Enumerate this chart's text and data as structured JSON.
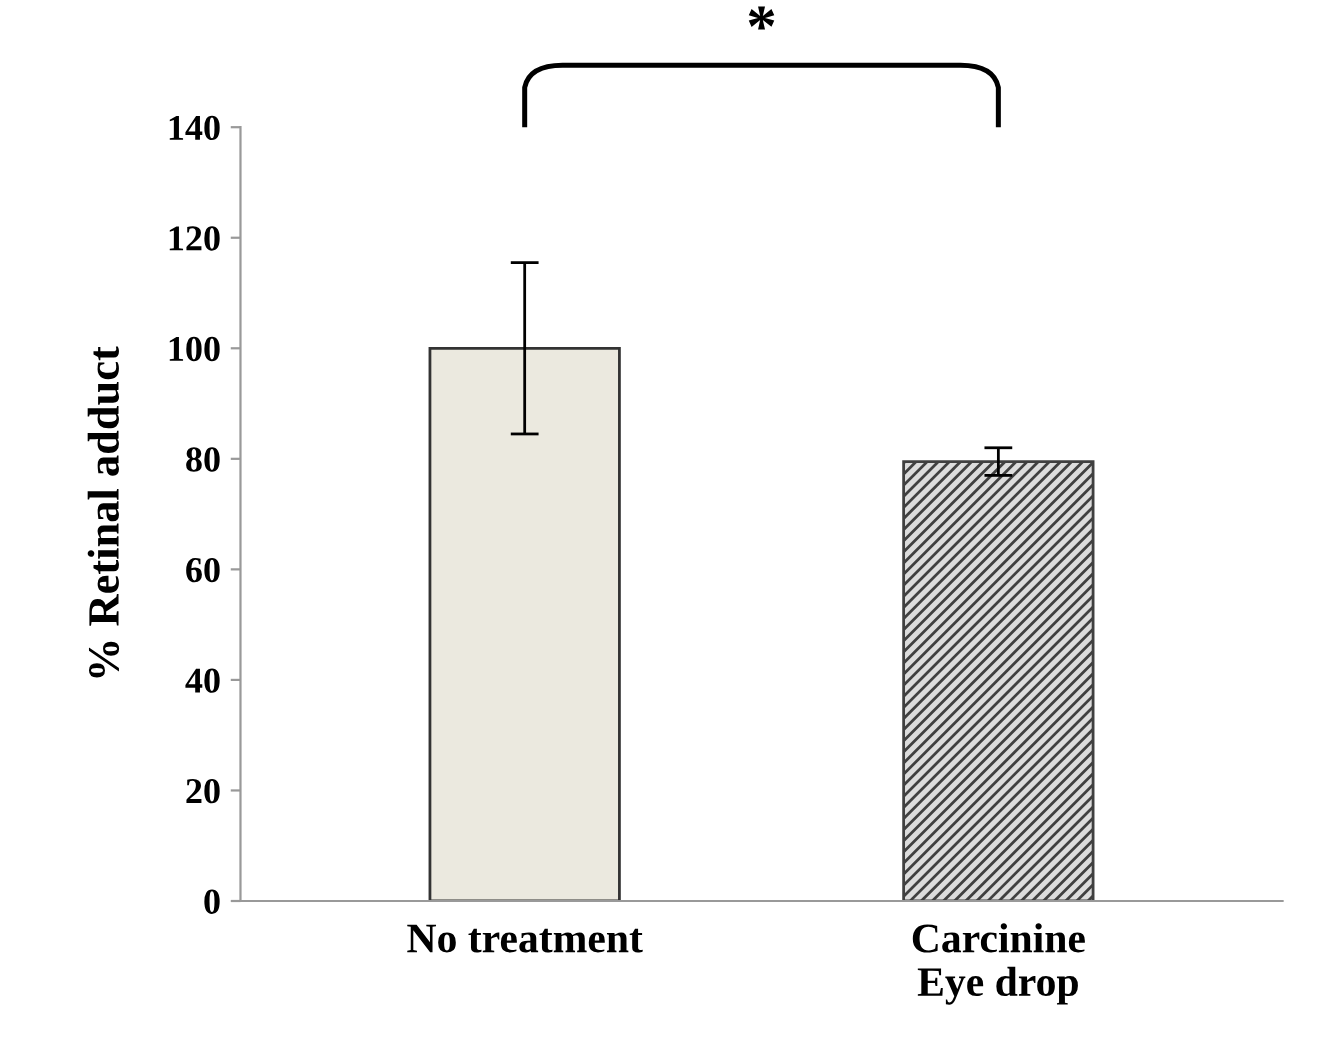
{
  "chart_data": {
    "type": "bar",
    "ylabel": "% Retinal adduct",
    "categories": [
      "No treatment",
      "Carcinine\nEye drop"
    ],
    "values": [
      100,
      79.5
    ],
    "colors": [
      "#ebe9df",
      "#404040"
    ],
    "errors": [
      15.5,
      2.5
    ],
    "ylim": [
      0,
      140
    ],
    "yticks": [
      0,
      20,
      40,
      60,
      80,
      100,
      120,
      140
    ],
    "grid": false,
    "legend": false,
    "annotations": [
      "*"
    ]
  }
}
